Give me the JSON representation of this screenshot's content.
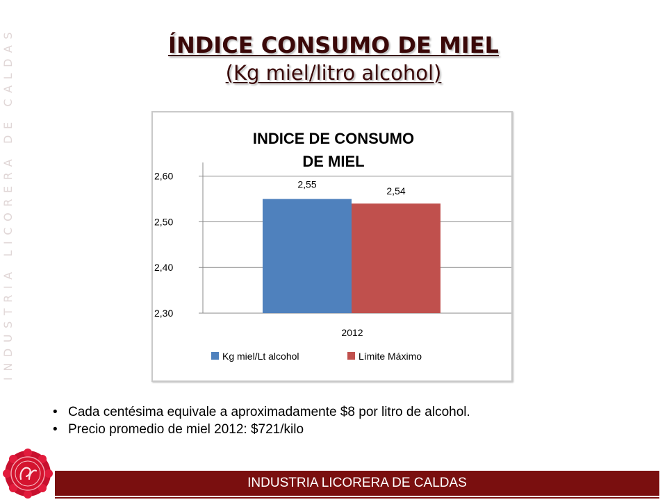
{
  "slide": {
    "title": "ÍNDICE CONSUMO DE MIEL",
    "subtitle": "(Kg miel/litro alcohol)",
    "side_text": "INDUSTRIA LICORERA DE CALDAS",
    "bullets": [
      "Cada centésima equivale a aproximadamente $8 por litro de alcohol.",
      "Precio promedio de miel 2012:  $721/kilo"
    ],
    "footer": "INDUSTRIA LICORERA DE CALDAS",
    "logo_icon": "seal-logo-icon",
    "colors": {
      "brand": "#7a0f0f",
      "series1": "#4f81bd",
      "series2": "#c0504d"
    }
  },
  "chart_data": {
    "type": "bar",
    "title_lines": [
      "INDICE DE CONSUMO",
      "DE MIEL"
    ],
    "categories": [
      "2012"
    ],
    "series": [
      {
        "name": "Kg miel/Lt alcohol",
        "values": [
          2.55
        ],
        "label": "2,55",
        "color": "#4f81bd"
      },
      {
        "name": "Límite Máximo",
        "values": [
          2.54
        ],
        "label": "2,54",
        "color": "#c0504d"
      }
    ],
    "yticks": [
      "2,30",
      "2,40",
      "2,50",
      "2,60"
    ],
    "ylim": [
      2.3,
      2.63
    ],
    "grid": true,
    "legend": "bottom"
  }
}
